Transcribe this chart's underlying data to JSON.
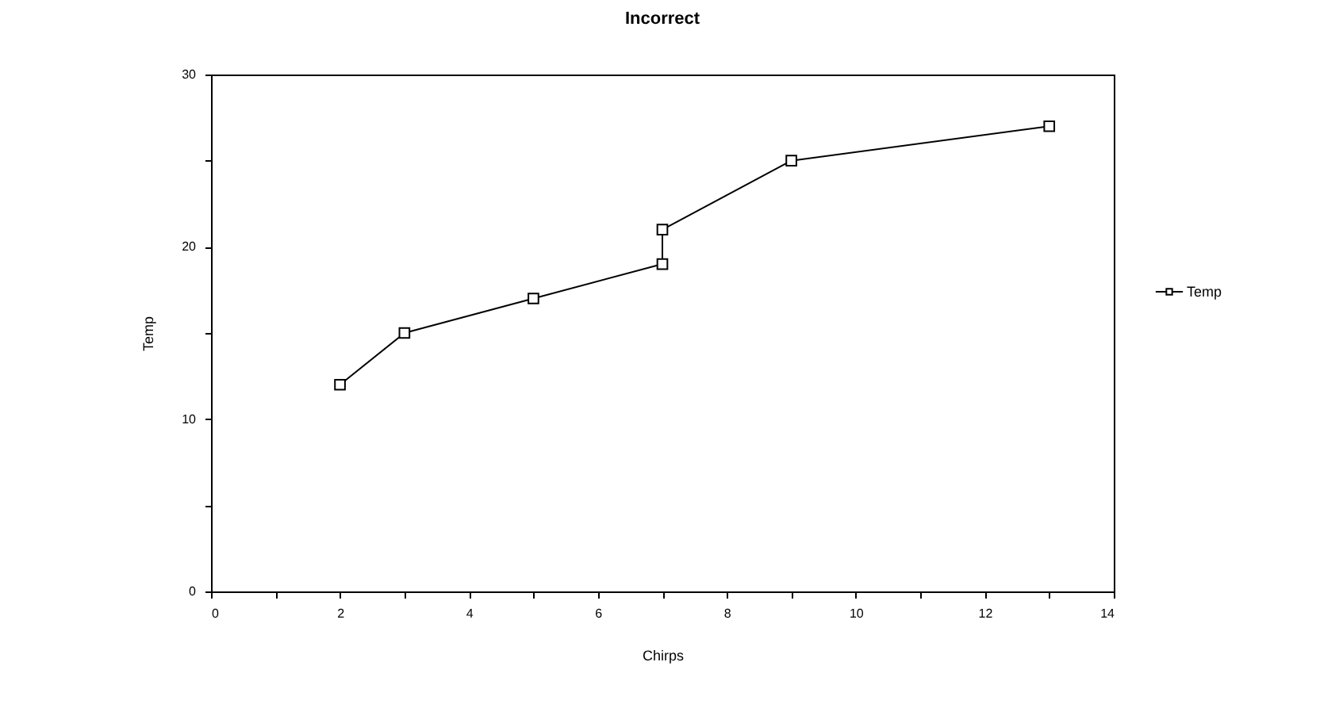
{
  "chart_data": {
    "type": "line",
    "title": "Incorrect",
    "xlabel": "Chirps",
    "ylabel": "Temp",
    "x": [
      2,
      3,
      5,
      7,
      7,
      9,
      13
    ],
    "series": [
      {
        "name": "Temp",
        "color": "#000000",
        "values": [
          12,
          15,
          17,
          19,
          21,
          25,
          27
        ]
      }
    ],
    "xlim": [
      0,
      14
    ],
    "xticks": [
      0,
      {
        "value": 1,
        "label": null
      },
      2,
      {
        "value": 3,
        "label": null
      },
      4,
      {
        "value": 5,
        "label": null
      },
      6,
      {
        "value": 7,
        "label": null
      },
      8,
      {
        "value": 9,
        "label": null
      },
      10,
      {
        "value": 11,
        "label": null
      },
      12,
      {
        "value": 13,
        "label": null
      },
      14
    ],
    "ylim": [
      0,
      30
    ],
    "yticks": [
      0,
      {
        "value": 5,
        "label": null
      },
      10,
      {
        "value": 15,
        "label": null
      },
      20,
      {
        "value": 25,
        "label": null
      },
      30
    ],
    "grid": false,
    "legend": "right",
    "marker": "square",
    "line_style": "solid"
  }
}
